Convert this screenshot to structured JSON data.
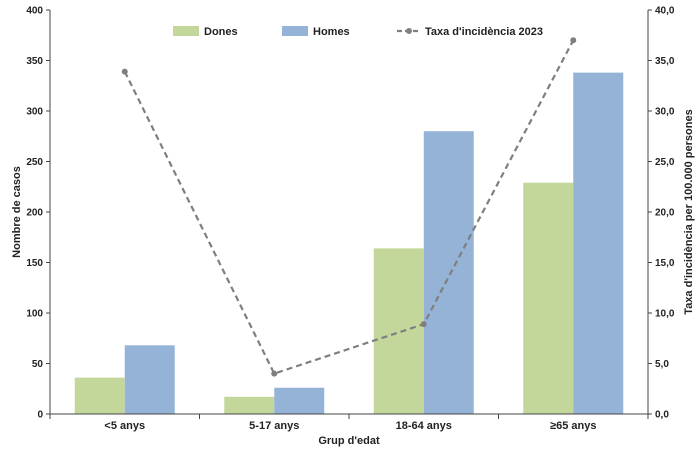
{
  "chart_data": {
    "type": "bar",
    "categories": [
      "<5 anys",
      "5-17 anys",
      "18-64 anys",
      "≥65 anys"
    ],
    "series": [
      {
        "name": "Dones",
        "type": "bar",
        "axis": "left",
        "color": "#c4d79b",
        "values": [
          36,
          17,
          164,
          229
        ]
      },
      {
        "name": "Homes",
        "type": "bar",
        "axis": "left",
        "color": "#95b3d7",
        "values": [
          68,
          26,
          280,
          338
        ]
      },
      {
        "name": "Taxa d'incidència 2023",
        "type": "line",
        "axis": "right",
        "color": "#7f7f7f",
        "line_style": "dashed",
        "values": [
          33.9,
          4.0,
          8.9,
          37.0
        ]
      }
    ],
    "xlabel": "Grup d'edat",
    "ylabel": "Nombre de casos",
    "y2label": "Taxa d'incidència per 100.000 persones",
    "ylim": [
      0,
      400
    ],
    "y2lim": [
      0,
      40
    ],
    "yticks": [
      "0",
      "50",
      "100",
      "150",
      "200",
      "250",
      "300",
      "350",
      "400"
    ],
    "y2ticks": [
      "0,0",
      "5,0",
      "10,0",
      "15,0",
      "20,0",
      "25,0",
      "30,0",
      "35,0",
      "40,0"
    ],
    "grid": false,
    "legend_position": "top"
  }
}
